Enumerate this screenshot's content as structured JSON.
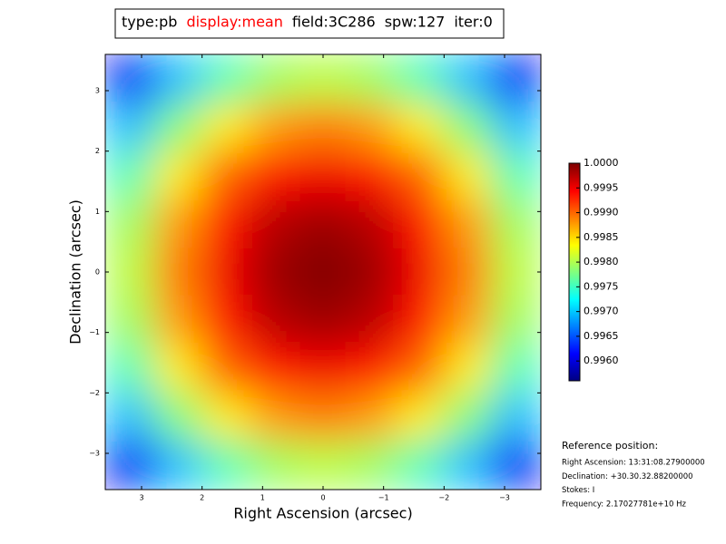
{
  "chart_data": {
    "type": "heatmap",
    "colormap": "jet",
    "title_parts": [
      {
        "text": "type:pb",
        "color": "#000000"
      },
      {
        "text": "display:mean",
        "color": "#ff0000"
      },
      {
        "text": "field:3C286",
        "color": "#000000"
      },
      {
        "text": "spw:127",
        "color": "#000000"
      },
      {
        "text": "iter:0",
        "color": "#000000"
      }
    ],
    "x_label": "Right Ascension (arcsec)",
    "y_label": "Declination (arcsec)",
    "x": [
      3.2,
      2.4,
      1.6,
      0.8,
      0,
      -0.8,
      -1.6,
      -2.4,
      -3.2
    ],
    "y": [
      3.2,
      2.4,
      1.6,
      0.8,
      0,
      -0.8,
      -1.6,
      -2.4,
      -3.2
    ],
    "z": [
      [
        0.99611,
        0.99696,
        0.99757,
        0.99793,
        0.99805,
        0.99793,
        0.99757,
        0.99696,
        0.99611
      ],
      [
        0.99696,
        0.99781,
        0.99842,
        0.99878,
        0.99891,
        0.99878,
        0.99842,
        0.99781,
        0.99696
      ],
      [
        0.99757,
        0.99842,
        0.99903,
        0.99939,
        0.99951,
        0.99939,
        0.99903,
        0.99842,
        0.99757
      ],
      [
        0.99793,
        0.99878,
        0.99939,
        0.99976,
        0.99988,
        0.99976,
        0.99939,
        0.99878,
        0.99793
      ],
      [
        0.99805,
        0.99891,
        0.99951,
        0.99988,
        1.0,
        0.99988,
        0.99951,
        0.99891,
        0.99805
      ],
      [
        0.99793,
        0.99878,
        0.99939,
        0.99976,
        0.99988,
        0.99976,
        0.99939,
        0.99878,
        0.99793
      ],
      [
        0.99757,
        0.99842,
        0.99903,
        0.99939,
        0.99951,
        0.99939,
        0.99903,
        0.99842,
        0.99757
      ],
      [
        0.99696,
        0.99781,
        0.99842,
        0.99878,
        0.99891,
        0.99878,
        0.99842,
        0.99781,
        0.99696
      ],
      [
        0.99611,
        0.99696,
        0.99757,
        0.99793,
        0.99805,
        0.99793,
        0.99757,
        0.99696,
        0.99611
      ]
    ],
    "xlim": [
      3.6,
      -3.6
    ],
    "ylim": [
      -3.6,
      3.6
    ],
    "xticks": [
      3,
      2,
      1,
      0,
      {
        "value": -1,
        "label": "−1"
      },
      {
        "value": -2,
        "label": "−2"
      },
      {
        "value": -3,
        "label": "−3"
      }
    ],
    "yticks": [
      3,
      2,
      1,
      0,
      {
        "value": -1,
        "label": "−1"
      },
      {
        "value": -2,
        "label": "−2"
      },
      {
        "value": -3,
        "label": "−3"
      }
    ],
    "colorbar": {
      "lim": [
        0.9956,
        1.0
      ],
      "ticks": [
        {
          "value": 1.0,
          "label": "1.0000"
        },
        {
          "value": 0.9995,
          "label": "0.9995"
        },
        {
          "value": 0.999,
          "label": "0.9990"
        },
        {
          "value": 0.9985,
          "label": "0.9985"
        },
        {
          "value": 0.998,
          "label": "0.9980"
        },
        {
          "value": 0.9975,
          "label": "0.9975"
        },
        {
          "value": 0.997,
          "label": "0.9970"
        },
        {
          "value": 0.9965,
          "label": "0.9965"
        },
        {
          "value": 0.996,
          "label": "0.9960"
        }
      ]
    },
    "reference": {
      "heading": "Reference position:",
      "lines": [
        "Right Ascension: 13:31:08.27900000",
        "Declination: +30.30.32.88200000",
        "Stokes: I",
        "Frequency: 2.17027781e+10 Hz"
      ]
    }
  }
}
